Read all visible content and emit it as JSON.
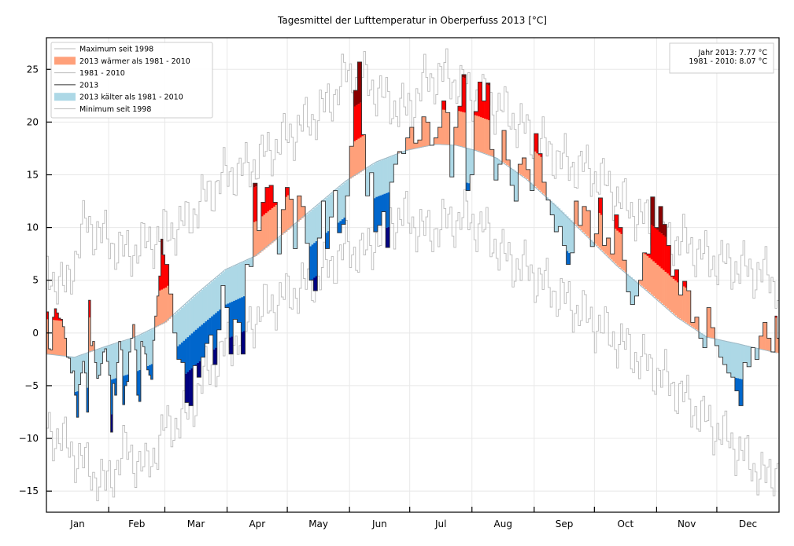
{
  "chart_data": {
    "type": "area",
    "title": "Tagesmittel der Lufttemperatur in Oberperfuss 2013 [°C]",
    "xlabel": "",
    "ylabel": "",
    "ylim": [
      -17,
      28
    ],
    "xlim_days": [
      1,
      365
    ],
    "grid": true,
    "yticks": [
      -15,
      -10,
      -5,
      0,
      5,
      10,
      15,
      20,
      25
    ],
    "ytick_labels": [
      "−15",
      "−10",
      "−5",
      "0",
      "5",
      "10",
      "15",
      "20",
      "25"
    ],
    "month_labels": [
      "Jan",
      "Feb",
      "Mar",
      "Apr",
      "May",
      "Jun",
      "Jul",
      "Aug",
      "Sep",
      "Oct",
      "Nov",
      "Dec"
    ],
    "month_start_days": [
      1,
      32,
      60,
      91,
      121,
      152,
      182,
      213,
      244,
      274,
      305,
      335
    ],
    "legend_position": "top-left",
    "legend": [
      {
        "label": "Maximum seit 1998",
        "kind": "line",
        "color": "#bbbbbb"
      },
      {
        "label": "2013 wärmer als 1981 - 2010",
        "kind": "patch",
        "color": "#ffa07a"
      },
      {
        "label": "1981 - 2010",
        "kind": "line",
        "color": "#bbbbbb"
      },
      {
        "label": "2013",
        "kind": "line",
        "color": "#333333"
      },
      {
        "label": "2013 kälter als 1981 - 2010",
        "kind": "patch",
        "color": "#add8e6"
      },
      {
        "label": "Minimum seit 1998",
        "kind": "line",
        "color": "#bbbbbb"
      }
    ],
    "info_box": {
      "position": "top-right",
      "lines": [
        "Jahr 2013: 7.77 °C",
        "1981 - 2010: 8.07 °C"
      ]
    },
    "colors": {
      "warm": "#ffa07a",
      "warm_strong": "#ff0000",
      "warm_extreme": "#8b0000",
      "cold": "#add8e6",
      "cold_strong": "#0066cc",
      "cold_extreme": "#000080",
      "line_2013": "#333333",
      "line_extremes": "#bbbbbb",
      "climate_line": "#9fb8c4"
    },
    "anomaly_band_degC": 3.3,
    "climate_anchors": {
      "days": [
        1,
        15,
        30,
        45,
        60,
        75,
        90,
        105,
        120,
        135,
        150,
        165,
        180,
        195,
        205,
        215,
        225,
        240,
        255,
        270,
        285,
        300,
        315,
        330,
        345,
        365
      ],
      "values": [
        -2.0,
        -2.3,
        -1.3,
        -0.4,
        1.0,
        3.6,
        6.0,
        7.3,
        9.6,
        12.0,
        14.4,
        16.2,
        17.3,
        17.9,
        17.8,
        17.3,
        16.6,
        14.6,
        12.0,
        9.2,
        6.4,
        4.0,
        1.5,
        -0.4,
        -1.0,
        -1.9
      ]
    },
    "series_2013_anchors": {
      "days": [
        1,
        2,
        3,
        4,
        5,
        6,
        7,
        8,
        9,
        10,
        11,
        12,
        13,
        14,
        15,
        16,
        17,
        18,
        19,
        20,
        21,
        22,
        23,
        24,
        25,
        26,
        27,
        28,
        29,
        30,
        31,
        32,
        33,
        34,
        35,
        36,
        37,
        38,
        39,
        40,
        41,
        42,
        43,
        44,
        45,
        46,
        47,
        48,
        49,
        50,
        51,
        52,
        53,
        54,
        55,
        56,
        57,
        58,
        59,
        60,
        62,
        64,
        66,
        68,
        70,
        72,
        74,
        76,
        78,
        80,
        82,
        84,
        86,
        88,
        90,
        92,
        94,
        96,
        98,
        100,
        102,
        104,
        106,
        108,
        110,
        112,
        114,
        116,
        118,
        120,
        122,
        124,
        126,
        128,
        130,
        132,
        134,
        136,
        138,
        140,
        142,
        144,
        146,
        148,
        150,
        152,
        154,
        156,
        158,
        160,
        162,
        164,
        166,
        168,
        170,
        172,
        174,
        176,
        178,
        180,
        182,
        184,
        186,
        188,
        190,
        192,
        194,
        196,
        198,
        200,
        202,
        204,
        206,
        208,
        210,
        212,
        214,
        216,
        218,
        220,
        222,
        224,
        226,
        228,
        230,
        232,
        234,
        236,
        238,
        240,
        242,
        244,
        246,
        248,
        250,
        252,
        254,
        256,
        258,
        260,
        262,
        264,
        266,
        268,
        270,
        272,
        274,
        276,
        278,
        280,
        282,
        284,
        286,
        288,
        290,
        292,
        294,
        296,
        298,
        300,
        302,
        304,
        306,
        308,
        310,
        312,
        314,
        316,
        318,
        320,
        322,
        324,
        326,
        328,
        330,
        332,
        334,
        336,
        338,
        340,
        342,
        344,
        346,
        348,
        350,
        352,
        354,
        356,
        358,
        360,
        362,
        364,
        365
      ],
      "values": [
        2.0,
        -1.5,
        -1.6,
        1.5,
        2.3,
        1.9,
        1.4,
        1.3,
        0.6,
        -0.5,
        -2.3,
        -2.4,
        -3.8,
        -3.6,
        -5.9,
        -8.0,
        -4.9,
        -3.8,
        -2.7,
        -3.8,
        -7.5,
        3.1,
        -1.2,
        -0.8,
        -2.8,
        -4.3,
        -4.0,
        -2.9,
        -1.8,
        -1.5,
        -2.7,
        -4.0,
        -9.4,
        -4.8,
        -5.9,
        -2.8,
        -0.8,
        -1.6,
        -6.8,
        -5.0,
        -4.6,
        -1.8,
        -0.5,
        0.8,
        -1.6,
        -5.9,
        -6.5,
        -0.8,
        -1.3,
        -2.0,
        -3.5,
        -4.0,
        -4.4,
        -0.7,
        1.6,
        3.5,
        5.4,
        8.9,
        7.4,
        6.5,
        3.7,
        0.0,
        -2.5,
        -2.8,
        -6.6,
        -6.9,
        -3.1,
        -4.2,
        -2.3,
        -1.0,
        -0.2,
        -3.0,
        0.3,
        4.5,
        2.4,
        -2.0,
        1.3,
        1.0,
        -2.0,
        6.5,
        6.3,
        14.2,
        9.7,
        12.4,
        13.8,
        14.0,
        12.4,
        7.5,
        11.7,
        13.8,
        12.7,
        8.0,
        13.0,
        12.0,
        8.5,
        5.0,
        4.0,
        9.0,
        12.5,
        8.0,
        11.0,
        13.5,
        9.5,
        10.3,
        13.0,
        17.7,
        23.0,
        25.7,
        18.8,
        13.0,
        15.2,
        9.6,
        10.2,
        11.5,
        8.1,
        14.3,
        16.0,
        17.2,
        17.0,
        18.5,
        19.5,
        18.0,
        18.3,
        20.5,
        20.0,
        17.8,
        18.5,
        19.5,
        22.0,
        20.9,
        14.8,
        19.5,
        21.5,
        24.5,
        13.5,
        15.0,
        21.0,
        23.8,
        22.0,
        23.7,
        17.4,
        14.5,
        16.0,
        19.2,
        16.4,
        14.0,
        12.5,
        16.0,
        16.6,
        15.5,
        13.5,
        18.9,
        17.0,
        14.3,
        12.6,
        11.2,
        9.6,
        10.1,
        8.3,
        6.5,
        7.6,
        12.5,
        10.2,
        12.0,
        11.6,
        8.2,
        9.4,
        12.8,
        8.3,
        9.0,
        7.5,
        11.2,
        10.0,
        6.9,
        3.9,
        2.7,
        3.5,
        5.0,
        7.6,
        7.5,
        12.9,
        10.0,
        12.0,
        10.3,
        8.3,
        5.4,
        6.0,
        3.6,
        4.9,
        4.0,
        1.0,
        1.5,
        -0.5,
        -1.4,
        2.4,
        0.5,
        -1.2,
        -2.3,
        -3.0,
        -3.8,
        -4.2,
        -5.5,
        -6.9,
        -2.8,
        -3.2,
        -1.4,
        -2.5,
        -0.3,
        1.0,
        -0.5,
        -1.8,
        1.6,
        -0.5,
        0.4,
        3.3,
        3.1,
        4.1,
        3.7,
        9.0,
        5.3,
        2.7,
        -1.5,
        -3.4,
        -3.4
      ]
    },
    "max_since_1998_anchors": {
      "days": [
        1,
        10,
        20,
        30,
        40,
        50,
        60,
        70,
        80,
        90,
        100,
        110,
        120,
        130,
        140,
        150,
        160,
        170,
        180,
        190,
        200,
        210,
        220,
        230,
        240,
        250,
        260,
        270,
        280,
        290,
        300,
        310,
        320,
        330,
        340,
        350,
        360,
        365
      ],
      "values": [
        6.0,
        4.0,
        10.5,
        9.0,
        7.5,
        8.5,
        9.5,
        10.5,
        13.0,
        15.0,
        15.5,
        17.0,
        18.5,
        20.0,
        21.5,
        24.5,
        24.0,
        22.0,
        21.0,
        24.0,
        24.5,
        23.0,
        22.0,
        21.0,
        19.0,
        17.5,
        16.0,
        15.5,
        14.0,
        12.0,
        10.5,
        9.0,
        8.5,
        7.0,
        6.5,
        6.0,
        5.5,
        4.5
      ]
    },
    "min_since_1998_anchors": {
      "days": [
        1,
        10,
        20,
        30,
        40,
        50,
        60,
        70,
        80,
        90,
        100,
        110,
        120,
        130,
        140,
        150,
        160,
        170,
        180,
        190,
        200,
        210,
        220,
        230,
        240,
        250,
        260,
        270,
        280,
        290,
        300,
        310,
        320,
        330,
        340,
        350,
        360,
        365
      ],
      "values": [
        -9.0,
        -10.5,
        -12.5,
        -14.5,
        -11.0,
        -13.0,
        -9.0,
        -8.0,
        -4.0,
        -1.5,
        0.5,
        2.5,
        3.5,
        4.5,
        6.0,
        8.0,
        7.5,
        10.5,
        11.0,
        9.5,
        10.5,
        11.0,
        9.5,
        7.0,
        6.0,
        4.5,
        3.0,
        1.5,
        0.0,
        -1.5,
        -3.0,
        -4.5,
        -6.5,
        -8.5,
        -10.0,
        -12.0,
        -14.0,
        -12.5
      ]
    }
  }
}
